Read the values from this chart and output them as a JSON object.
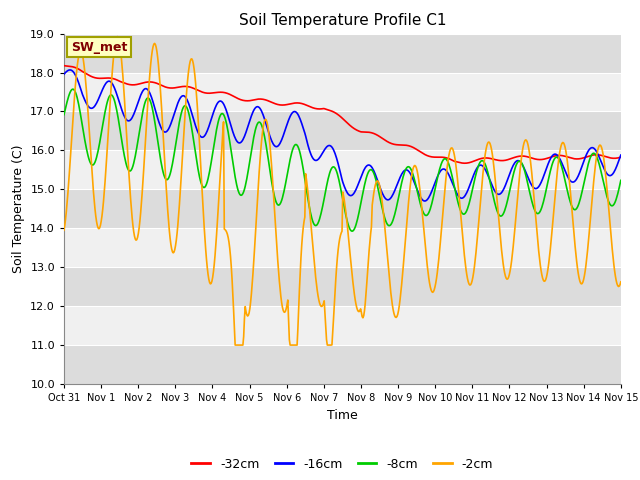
{
  "title": "Soil Temperature Profile C1",
  "xlabel": "Time",
  "ylabel": "Soil Temperature (C)",
  "ylim": [
    10.0,
    19.0
  ],
  "yticks": [
    10.0,
    11.0,
    12.0,
    13.0,
    14.0,
    15.0,
    16.0,
    17.0,
    18.0,
    19.0
  ],
  "annotation_text": "SW_met",
  "annotation_box_color": "#FFFFC0",
  "annotation_box_edgecolor": "#A0A000",
  "annotation_text_color": "#800000",
  "fig_facecolor": "#FFFFFF",
  "plot_bg_color": "#FFFFFF",
  "band_color_even": "#DCDCDC",
  "band_color_odd": "#F0F0F0",
  "series_colors": [
    "#FF0000",
    "#0000FF",
    "#00CC00",
    "#FFA500"
  ],
  "series_names": [
    "-32cm",
    "-16cm",
    "-8cm",
    "-2cm"
  ],
  "linewidth": 1.2,
  "xtick_labels": [
    "Oct 31",
    "Nov 1",
    "Nov 2",
    "Nov 3",
    "Nov 4",
    "Nov 5",
    "Nov 6",
    "Nov 7",
    "Nov 8",
    "Nov 9",
    "Nov 10",
    "Nov 11",
    "Nov 12",
    "Nov 13",
    "Nov 14",
    "Nov 15"
  ]
}
